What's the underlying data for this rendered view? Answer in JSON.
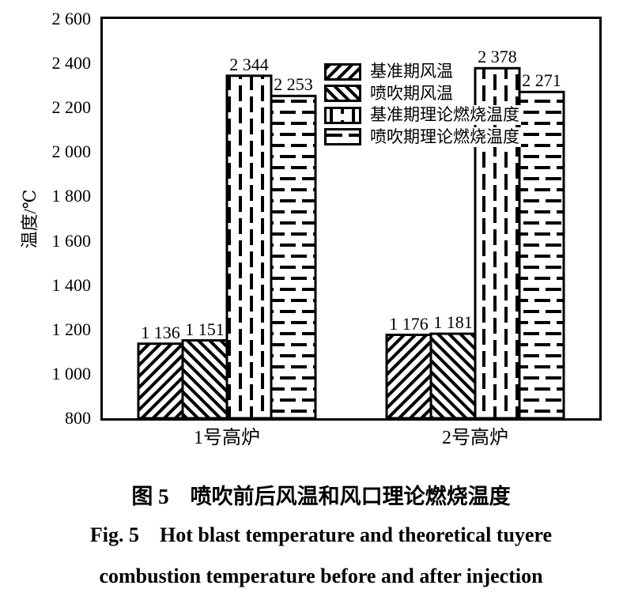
{
  "page": {
    "background": "#ffffff",
    "ink": "#000000"
  },
  "figure": {
    "caption_zh": "图 5　喷吹前后风温和风口理论燃烧温度",
    "caption_en_line1": "Fig. 5  Hot blast temperature and theoretical tuyere",
    "caption_en_line2": "combustion temperature before and after injection"
  },
  "chart_data": {
    "type": "bar",
    "title": "",
    "xlabel": "",
    "ylabel": "温度/℃",
    "categories": [
      "1号高炉",
      "2号高炉"
    ],
    "series": [
      {
        "name": "基准期风温",
        "pattern": "diag-forward",
        "values": [
          1136,
          1176
        ]
      },
      {
        "name": "喷吹期风温",
        "pattern": "diag-backward",
        "values": [
          1151,
          1181
        ]
      },
      {
        "name": "基准期理论燃烧温度",
        "pattern": "vertical-dash",
        "values": [
          2344,
          2378
        ]
      },
      {
        "name": "喷吹期理论燃烧温度",
        "pattern": "horizontal-dash",
        "values": [
          2253,
          2271
        ]
      }
    ],
    "ylim": [
      800,
      2600
    ],
    "ytick_step": 200,
    "ytick_labels": [
      "800",
      "1 000",
      "1 200",
      "1 400",
      "1 600",
      "1 800",
      "2 000",
      "2 200",
      "2 400",
      "2 600"
    ],
    "bar_value_labels": [
      [
        "1 136",
        "1 151",
        "2 344",
        "2 253"
      ],
      [
        "1 176",
        "1 181",
        "2 378",
        "2 271"
      ]
    ],
    "number_format": "space-thousands",
    "grid": false,
    "legend_position": "inside-top-center",
    "bar_outline_color": "#000000",
    "bar_fill_base": "#ffffff"
  }
}
